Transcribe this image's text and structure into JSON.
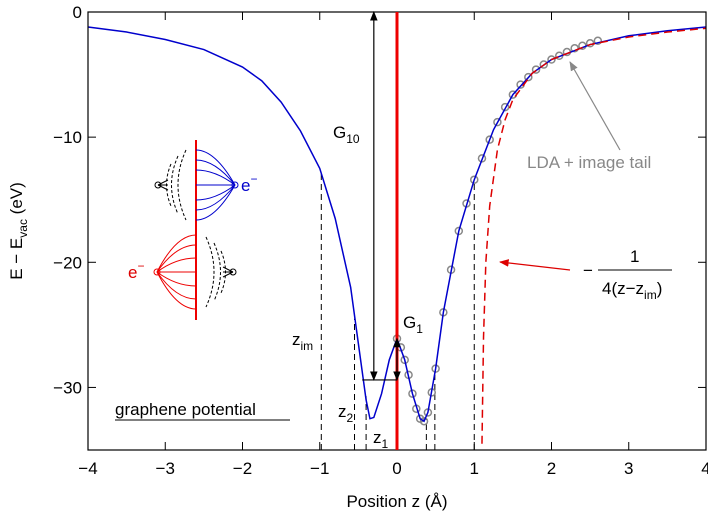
{
  "chart_data": {
    "type": "line",
    "xlabel": "Position z (Å)",
    "ylabel": {
      "main": "E − E",
      "sub": "vac",
      "unit": " (eV)"
    },
    "xlim": [
      -4,
      4
    ],
    "ylim": [
      -35,
      0
    ],
    "xticks": [
      {
        "value": -4,
        "label": "−4"
      },
      {
        "value": -3,
        "label": "−3"
      },
      {
        "value": -2,
        "label": "−2"
      },
      {
        "value": -1,
        "label": "−1"
      },
      0,
      1,
      2,
      3,
      4
    ],
    "yticks": [
      0,
      {
        "value": -10,
        "label": "−10"
      },
      {
        "value": -20,
        "label": "−20"
      },
      {
        "value": -30,
        "label": "−30"
      }
    ],
    "series": [
      {
        "color": "#0000cc",
        "style": "line",
        "x": [
          -4,
          -3.5,
          -3,
          -2.5,
          -2,
          -1.75,
          -1.5,
          -1.25,
          -1,
          -0.8,
          -0.6,
          -0.5,
          -0.4,
          -0.35,
          -0.3,
          -0.2,
          -0.1,
          0,
          0.1,
          0.2,
          0.3,
          0.35,
          0.4,
          0.5,
          0.6,
          0.8,
          1,
          1.25,
          1.5,
          1.75,
          2,
          2.5,
          3,
          3.5,
          4
        ],
        "values": [
          -1.2,
          -1.6,
          -2.2,
          -3.0,
          -4.4,
          -5.5,
          -7.2,
          -9.5,
          -12.5,
          -16.5,
          -22,
          -26.5,
          -31,
          -32.5,
          -32.4,
          -30.5,
          -27.8,
          -26.1,
          -27.8,
          -30.5,
          -32.5,
          -32.7,
          -32,
          -28.5,
          -24,
          -17.5,
          -13.4,
          -9.4,
          -6.6,
          -4.9,
          -3.8,
          -2.6,
          -1.9,
          -1.5,
          -1.2
        ]
      },
      {
        "color": "#888888",
        "style": "circles",
        "x": [
          0,
          0.05,
          0.1,
          0.15,
          0.2,
          0.25,
          0.3,
          0.35,
          0.4,
          0.45,
          0.5,
          0.6,
          0.7,
          0.8,
          0.9,
          1,
          1.1,
          1.2,
          1.3,
          1.4,
          1.5,
          1.6,
          1.7,
          1.8,
          1.9,
          2,
          2.1,
          2.2,
          2.3,
          2.4,
          2.5,
          2.6
        ],
        "values": [
          -26.1,
          -26.8,
          -27.8,
          -29,
          -30.5,
          -31.7,
          -32.5,
          -32.7,
          -32,
          -30.4,
          -28.5,
          -24,
          -20.6,
          -17.5,
          -15.3,
          -13.4,
          -11.7,
          -10.2,
          -8.8,
          -7.6,
          -6.6,
          -5.8,
          -5.2,
          -4.6,
          -4.2,
          -3.8,
          -3.5,
          -3.2,
          -2.9,
          -2.7,
          -2.5,
          -2.3
        ]
      },
      {
        "color": "#dd0000",
        "style": "dashed",
        "x": [
          1.1,
          1.12,
          1.15,
          1.2,
          1.3,
          1.4,
          1.5,
          1.75,
          2,
          2.5,
          3,
          3.5,
          4
        ],
        "values": [
          -34.5,
          -26,
          -20,
          -15.5,
          -11,
          -8.6,
          -7,
          -4.9,
          -3.8,
          -2.6,
          -2.0,
          -1.6,
          -1.3
        ]
      }
    ],
    "surface_line": {
      "x": 0,
      "color": "#ee0000"
    },
    "markers": [
      {
        "x": -0.98,
        "y": -12.7
      },
      {
        "x": -0.55,
        "y": -24.5
      },
      {
        "x": -0.4,
        "y": -30.7
      },
      {
        "x": 0.38,
        "y": -32.5
      },
      {
        "x": 0.49,
        "y": -29
      },
      {
        "x": 1.0,
        "y": -13.4
      }
    ],
    "arrows": [
      {
        "main": "G",
        "sub": "10",
        "x": -0.3,
        "y0": 0,
        "y1": -29.4
      },
      {
        "main": "G",
        "sub": "1",
        "x": 0,
        "y0": -26.1,
        "y1": -29.4
      }
    ],
    "level_line": {
      "x0": -0.45,
      "x1": 0,
      "y": -29.4
    },
    "labels": [
      {
        "main": "z",
        "sub": "im"
      },
      {
        "main": "z",
        "sub": "2"
      },
      {
        "main": "z",
        "sub": "1"
      }
    ],
    "annotations": {
      "graphene": "graphene potential",
      "lda": "LDA + image tail",
      "formula": {
        "minus": "−",
        "num": "1",
        "den": "4(z−z",
        "den_sub": "im",
        "den_end": ")"
      },
      "electron_blue": {
        "main": "e",
        "sup": "−"
      },
      "electron_red": {
        "main": "e",
        "sup": "−"
      }
    }
  }
}
